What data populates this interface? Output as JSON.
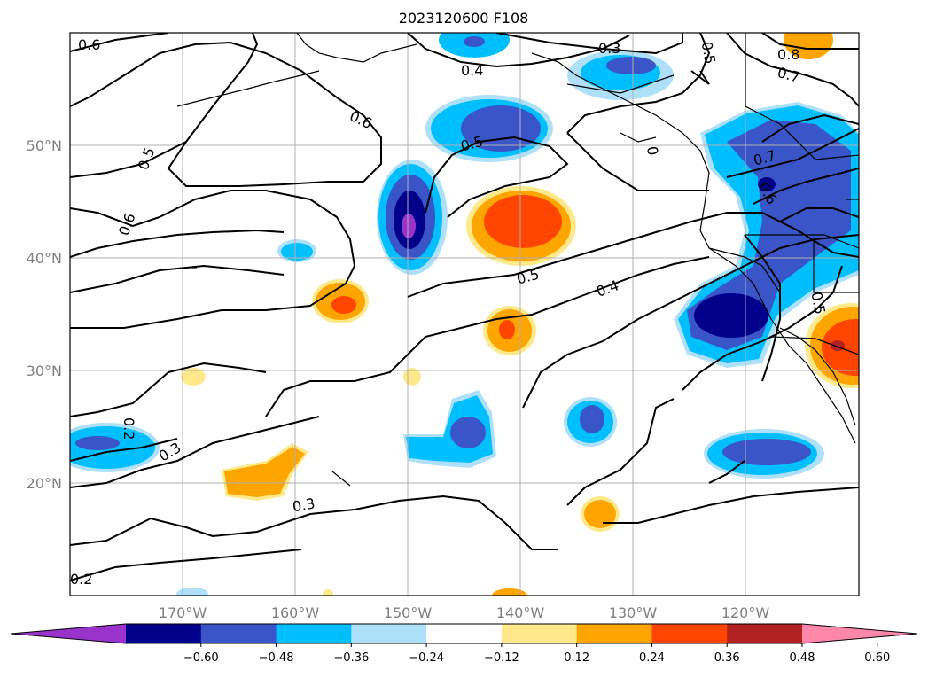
{
  "title": "2023120600 F108",
  "lat_labels": [
    "50°N",
    "40°N",
    "30°N",
    "20°N"
  ],
  "lon_labels": [
    "170°W",
    "160°W",
    "150°W",
    "140°W",
    "130°W",
    "120°W"
  ],
  "colorbar": {
    "ticks": [
      "−0.60",
      "−0.48",
      "−0.36",
      "−0.24",
      "−0.12",
      "0.12",
      "0.24",
      "0.36",
      "0.48",
      "0.60"
    ],
    "colors": [
      "#9933cc",
      "#00008b",
      "#3a55c8",
      "#00bfff",
      "#aee0fa",
      "#ffffff",
      "#ffe98a",
      "#ffa500",
      "#ff4500",
      "#b22222",
      "#ff88aa"
    ]
  },
  "contour_labels": [
    "0.6",
    "0.5",
    "0.6",
    "0.6",
    "0.5",
    "0.4",
    "0.3",
    "0.5",
    "0.8",
    "0.7",
    "0.5",
    "0.4",
    "0.3",
    "0.2",
    "0.3",
    "0.2",
    "0.7",
    "0.6",
    "0.5",
    "0"
  ]
}
